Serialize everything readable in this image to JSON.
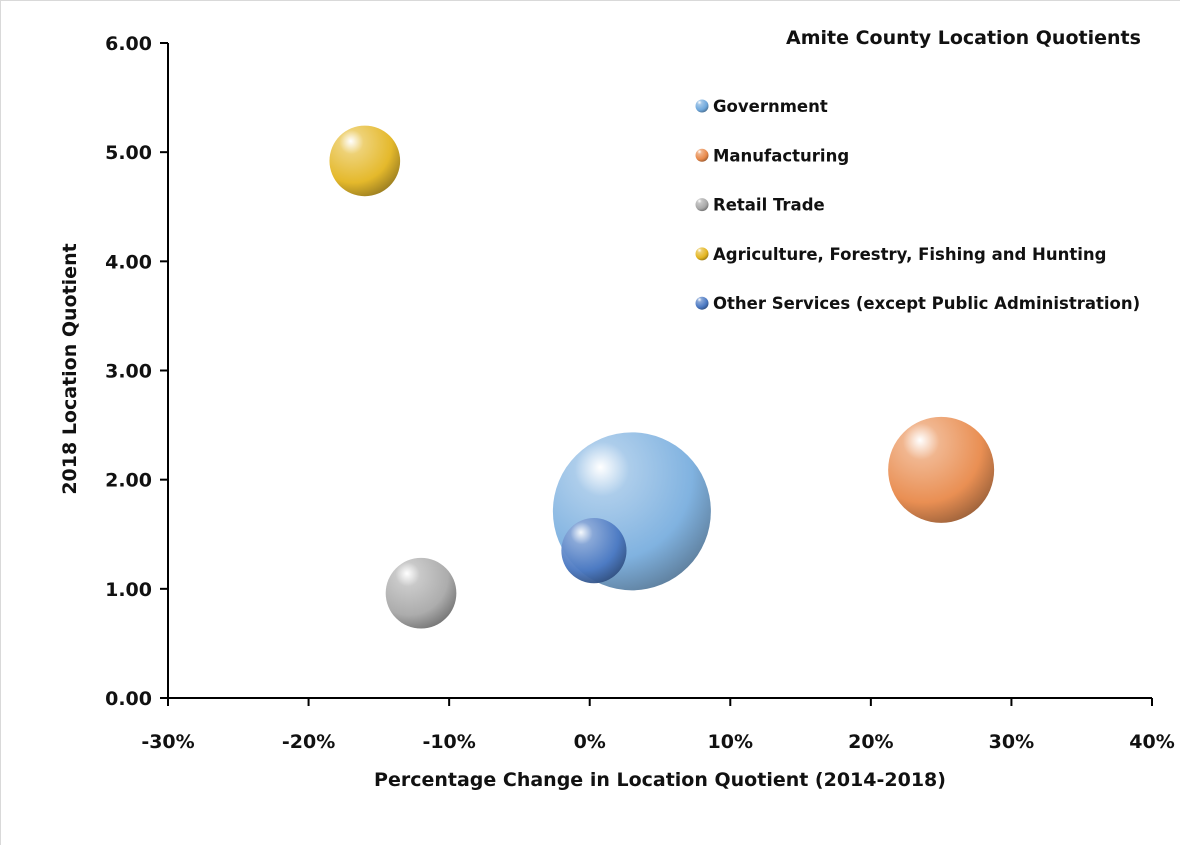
{
  "chart_data": {
    "type": "bubble",
    "title": "Amite County Location Quotients",
    "xlabel": "Percentage Change in Location Quotient (2014-2018)",
    "ylabel": "2018 Location Quotient",
    "xlim": [
      -30,
      40
    ],
    "ylim": [
      0,
      6
    ],
    "x_ticks": [
      "-30%",
      "-20%",
      "-10%",
      "0%",
      "10%",
      "20%",
      "30%",
      "40%"
    ],
    "x_tick_values": [
      -30,
      -20,
      -10,
      0,
      10,
      20,
      30,
      40
    ],
    "y_ticks": [
      "0.00",
      "1.00",
      "2.00",
      "3.00",
      "4.00",
      "5.00",
      "6.00"
    ],
    "y_tick_values": [
      0,
      1,
      2,
      3,
      4,
      5,
      6
    ],
    "grid": false,
    "legend_position": "top-right",
    "series": [
      {
        "name": "Government",
        "x": 3,
        "y": 1.71,
        "size": 1.0,
        "color": "#6fa8dc"
      },
      {
        "name": "Manufacturing",
        "x": 25,
        "y": 2.09,
        "size": 0.45,
        "color": "#e8894a"
      },
      {
        "name": "Retail Trade",
        "x": -12,
        "y": 0.96,
        "size": 0.2,
        "color": "#a8a8a8"
      },
      {
        "name": "Agriculture, Forestry, Fishing and Hunting",
        "x": -16,
        "y": 4.92,
        "size": 0.2,
        "color": "#e3b520"
      },
      {
        "name": "Other Services (except Public Administration)",
        "x": 0.3,
        "y": 1.35,
        "size": 0.17,
        "color": "#4a78c2"
      }
    ]
  }
}
